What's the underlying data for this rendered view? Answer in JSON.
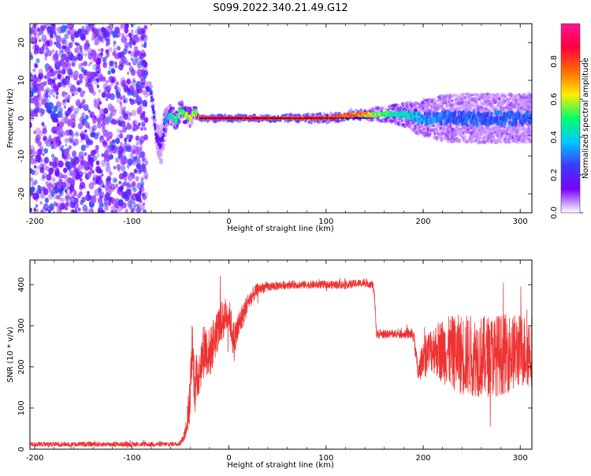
{
  "figure": {
    "title": "S099.2022.340.21.49.G12"
  },
  "chart_data": [
    {
      "type": "heatmap",
      "xlabel": "Height of straight line (km)",
      "ylabel": "Frequency (Hz)",
      "xlim": [
        -205,
        312
      ],
      "ylim": [
        -25,
        25
      ],
      "xticks": [
        -200,
        -100,
        0,
        100,
        200,
        300
      ],
      "yticks": [
        -20,
        -10,
        0,
        10,
        20
      ],
      "colorbar": {
        "label": "Normalized spectral amplitude",
        "range": [
          0,
          1
        ],
        "ticks": [
          0.0,
          0.2,
          0.4,
          0.6,
          0.8
        ],
        "colormap": [
          "#ffffff",
          "#7b00ff",
          "#3a3cff",
          "#00c8ff",
          "#00ff6a",
          "#ffee00",
          "#ff6a00",
          "#ff0040",
          "#ff1493"
        ]
      },
      "noise_region_x": [
        -205,
        -85
      ],
      "signal_track": {
        "x": [
          -85,
          -80,
          -75,
          -70,
          -65,
          -60,
          -55,
          -50,
          -45,
          -40,
          -35,
          -30,
          -20,
          0,
          50,
          100,
          130,
          160,
          180,
          200,
          230,
          260,
          290,
          312
        ],
        "y": [
          8,
          7,
          -5,
          -7,
          0,
          1,
          -1,
          2,
          1,
          0,
          2,
          0,
          0,
          0,
          0,
          0,
          1,
          1,
          1,
          0,
          0,
          0,
          0,
          0
        ],
        "amplitude": [
          0.15,
          0.3,
          0.2,
          0.15,
          0.35,
          0.45,
          0.5,
          0.55,
          0.6,
          0.6,
          0.55,
          0.9,
          1.0,
          1.0,
          0.95,
          0.9,
          0.85,
          0.55,
          0.45,
          0.35,
          0.3,
          0.3,
          0.3,
          0.3
        ],
        "spread": [
          1,
          1.5,
          2,
          3,
          2,
          1.5,
          1.5,
          1.5,
          1.5,
          1.5,
          1.2,
          0.5,
          0.5,
          0.5,
          0.5,
          0.8,
          0.8,
          1.2,
          1.8,
          3,
          4,
          4,
          4,
          4
        ]
      },
      "reference_line": {
        "x": [
          -30,
          150
        ],
        "y": [
          0,
          0
        ]
      }
    },
    {
      "type": "line",
      "xlabel": "Height of straight line (km)",
      "ylabel": "SNR (10 * v/v)",
      "xlim": [
        -205,
        312
      ],
      "ylim": [
        0,
        460
      ],
      "xticks": [
        -200,
        -100,
        0,
        100,
        200,
        300
      ],
      "yticks": [
        0,
        100,
        200,
        300,
        400
      ],
      "series": [
        {
          "color": "#ee3333",
          "x": [
            -205,
            -150,
            -100,
            -60,
            -50,
            -45,
            -40,
            -38,
            -35,
            -30,
            -25,
            -20,
            -15,
            -10,
            -5,
            0,
            5,
            10,
            15,
            20,
            30,
            40,
            60,
            80,
            100,
            120,
            140,
            148,
            150,
            152,
            160,
            170,
            180,
            190,
            195,
            200,
            210,
            220,
            240,
            260,
            280,
            300,
            312
          ],
          "y": [
            12,
            12,
            12,
            12,
            15,
            40,
            120,
            250,
            150,
            200,
            250,
            230,
            270,
            300,
            320,
            330,
            260,
            300,
            330,
            360,
            390,
            395,
            400,
            400,
            400,
            400,
            405,
            400,
            370,
            280,
            280,
            280,
            280,
            280,
            180,
            230,
            245,
            240,
            230,
            225,
            230,
            240,
            240
          ],
          "jitter": [
            6,
            6,
            6,
            6,
            6,
            15,
            60,
            60,
            70,
            60,
            70,
            60,
            60,
            50,
            50,
            40,
            50,
            40,
            30,
            25,
            15,
            12,
            10,
            10,
            10,
            10,
            10,
            10,
            10,
            12,
            10,
            10,
            10,
            15,
            25,
            40,
            60,
            80,
            100,
            100,
            100,
            90,
            90
          ]
        }
      ]
    }
  ]
}
